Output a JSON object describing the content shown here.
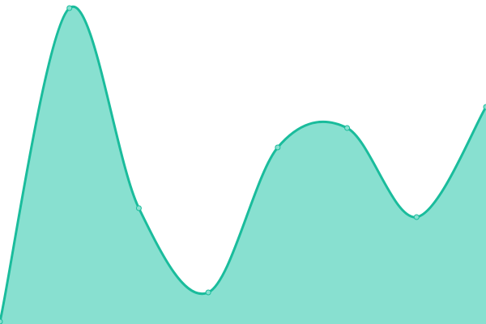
{
  "chart_data": {
    "type": "area",
    "title": "",
    "xlabel": "",
    "ylabel": "",
    "x": [
      0,
      1,
      2,
      3,
      4,
      5,
      6,
      7
    ],
    "series": [
      {
        "values": [
          3,
          390,
          143,
          39,
          218,
          242,
          132,
          268
        ]
      }
    ],
    "ylim": [
      0,
      400
    ],
    "grid": false,
    "axes_visible": false,
    "smooth": true,
    "colors": {
      "line": "#1abc9c",
      "fill": "#88e0d0",
      "marker_fill": "#88e0d0"
    }
  }
}
